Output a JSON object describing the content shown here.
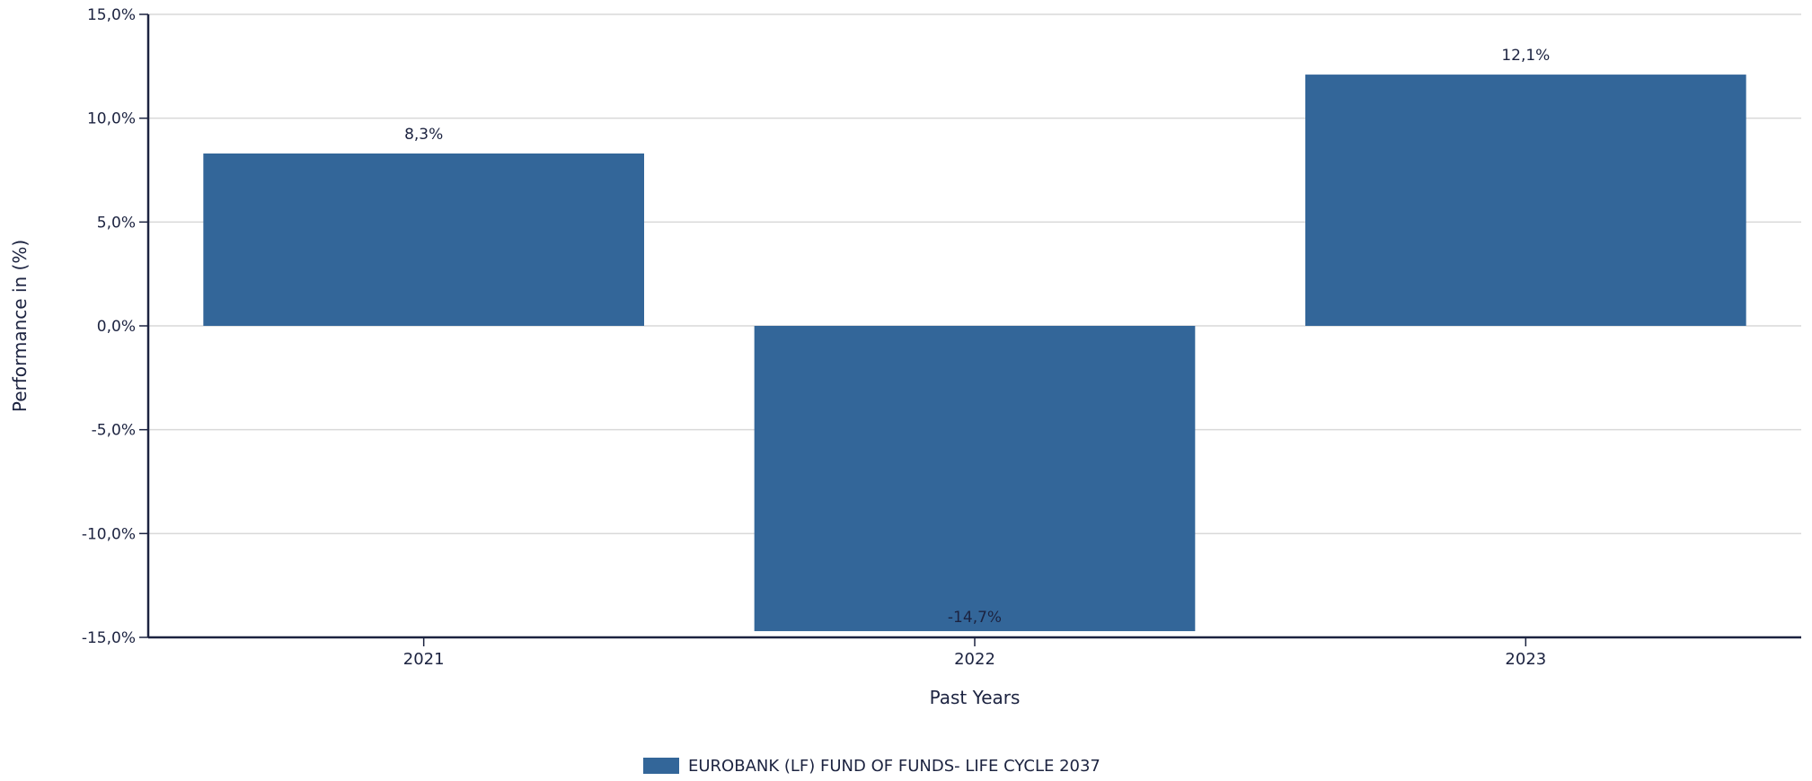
{
  "chart_data": {
    "type": "bar",
    "title": "",
    "xlabel": "Past Years",
    "ylabel": "Performance in (%)",
    "categories": [
      "2021",
      "2022",
      "2023"
    ],
    "series": [
      {
        "name": "EUROBANK (LF) FUND OF FUNDS- LIFE CYCLE 2037",
        "values": [
          8.3,
          -14.7,
          12.1
        ],
        "labels": [
          "8,3%",
          "-14,7%",
          "12,1%"
        ],
        "color": "#336699"
      }
    ],
    "ylim": [
      -15,
      15
    ],
    "yticks": [
      15,
      10,
      5,
      0,
      -5,
      -10,
      -15
    ],
    "ytick_labels": [
      "15,0%",
      "10,0%",
      "5,0%",
      "0,0%",
      "-5,0%",
      "-10,0%",
      "-15,0%"
    ],
    "grid": true,
    "legend_position": "bottom-center"
  },
  "colors": {
    "bar": "#336699",
    "text": "#1c2340",
    "grid": "#d9d9d9",
    "axis": "#1c2340"
  }
}
